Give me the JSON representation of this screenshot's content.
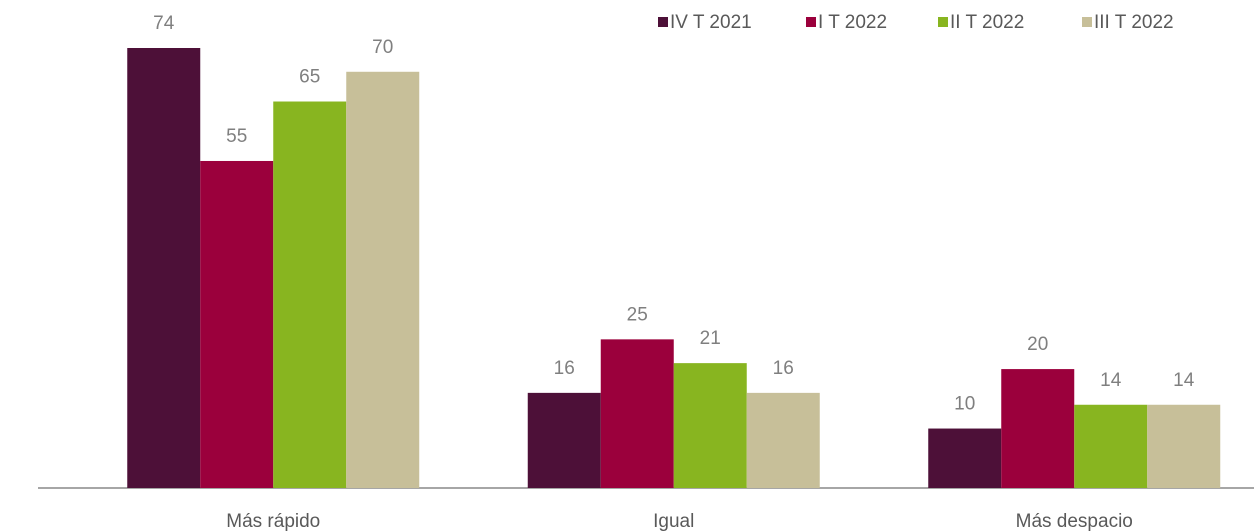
{
  "chart_data": {
    "type": "bar",
    "categories": [
      "Más rápido",
      "Igual",
      "Más despacio"
    ],
    "series": [
      {
        "name": "IV T 2021",
        "color": "#4d1038",
        "values": [
          74,
          16,
          10
        ]
      },
      {
        "name": "I T 2022",
        "color": "#9b003c",
        "values": [
          55,
          25,
          20
        ]
      },
      {
        "name": "II T 2022",
        "color": "#88b520",
        "values": [
          65,
          21,
          14
        ]
      },
      {
        "name": "III T 2022",
        "color": "#c7bf99",
        "values": [
          70,
          16,
          14
        ]
      }
    ],
    "legend": "top-right"
  }
}
